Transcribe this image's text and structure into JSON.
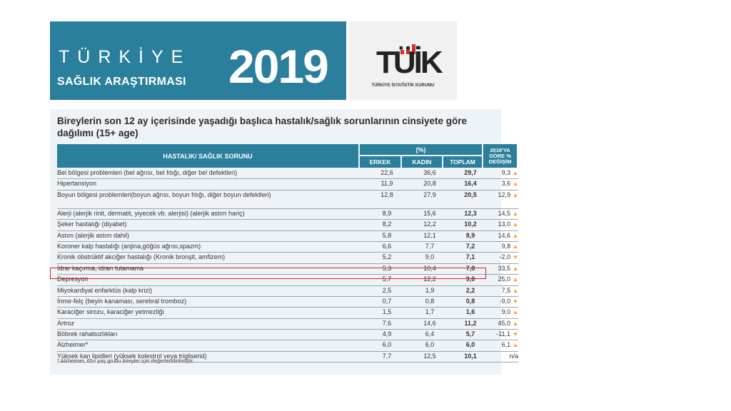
{
  "banner": {
    "word": "TÜRKİYE",
    "subtitle": "SAĞLIK ARAŞTIRMASI",
    "year": "2019",
    "bg_color": "#2a7f9c"
  },
  "logo": {
    "text": "TÜİK",
    "caption": "TÜRKİYE İSTATİSTİK KURUMU",
    "bar_color": "#d32e2e"
  },
  "table": {
    "title": "Bireylerin son 12 ay içerisinde yaşadığı başlıca hastalık/sağlık sorunlarının cinsiyete göre dağılımı (15+ age)",
    "col_disease": "HASTALIK/ SAĞLIK SORUNU",
    "col_pct": "(%)",
    "col_male": "ERKEK",
    "col_female": "KADIN",
    "col_total": "TOPLAM",
    "col_change": "2016'YA GÖRE % DEĞİŞİM",
    "up_color": "#f39a1d",
    "highlight_color": "#d71f27",
    "rows": [
      {
        "name": "Bel bölgesi problemleri (bel ağrısı, bel fıtığı, diğer bel defektleri)",
        "male": "22,6",
        "female": "36,6",
        "total": "29,7",
        "change": "9,3",
        "dir": "up"
      },
      {
        "name": "Hipertansiyon",
        "male": "11,9",
        "female": "20,8",
        "total": "16,4",
        "change": "3,6",
        "dir": "up"
      },
      {
        "name": "Boyun bölgesi problemleri(boyun ağrısı, boyun fıtığı, diğer boyun defektleri)",
        "male": "12,8",
        "female": "27,9",
        "total": "20,5",
        "change": "12,9",
        "dir": "up",
        "tall": true
      },
      {
        "name": "Alerji (alerjik rinit, dermatit, yiyecek vb. alerjisi) (alerjik astım hariç)",
        "male": "8,9",
        "female": "15,6",
        "total": "12,3",
        "change": "14,5",
        "dir": "up"
      },
      {
        "name": "Şeker hastalığı (diyabet)",
        "male": "8,2",
        "female": "12,2",
        "total": "10,2",
        "change": "13,0",
        "dir": "up"
      },
      {
        "name": "Astım (alerjik astım dahil)",
        "male": "5,8",
        "female": "12,1",
        "total": "8,9",
        "change": "14,6",
        "dir": "up"
      },
      {
        "name": "Koroner kalp hastalığı (anjina,göğüs ağrısı,spazm)",
        "male": "6,6",
        "female": "7,7",
        "total": "7,2",
        "change": "9,8",
        "dir": "up"
      },
      {
        "name": "Kronik obstrüktif akciğer hastalığı (Kronik bronşit, amfizem)",
        "male": "5,2",
        "female": "9,0",
        "total": "7,1",
        "change": "-2,0",
        "dir": "down"
      },
      {
        "name": "İdrar kaçırma, idrarı tutamama",
        "male": "5,3",
        "female": "10,4",
        "total": "7,8",
        "change": "33,5",
        "dir": "up"
      },
      {
        "name": "Depresyon",
        "male": "5,7",
        "female": "12,2",
        "total": "9,0",
        "change": "25,0",
        "dir": "up"
      },
      {
        "name": "Miyokardiyal enfarktüs (kalp krizi)",
        "male": "2,5",
        "female": "1,9",
        "total": "2,2",
        "change": "7,5",
        "dir": "up"
      },
      {
        "name": "İnme-felç (beyin kanaması, serebral tromboz)",
        "male": "0,7",
        "female": "0,8",
        "total": "0,8",
        "change": "-9,0",
        "dir": "down"
      },
      {
        "name": "Karaciğer sirozu, karaciğer yetmezliği",
        "male": "1,5",
        "female": "1,7",
        "total": "1,6",
        "change": "9,0",
        "dir": "up"
      },
      {
        "name": "Artroz",
        "male": "7,6",
        "female": "14,6",
        "total": "11,2",
        "change": "45,0",
        "dir": "up"
      },
      {
        "name": "Böbrek rahatsızlıkları",
        "male": "4,9",
        "female": "6,4",
        "total": "5,7",
        "change": "-11,1",
        "dir": "down"
      },
      {
        "name": "Alzheimer*",
        "male": "6,0",
        "female": "6,0",
        "total": "6,0",
        "change": "6,1",
        "dir": "up"
      },
      {
        "name": "Yüksek kan lipidleri (yüksek kolestrol veya trigliserid)",
        "male": "7,7",
        "female": "12,5",
        "total": "10,1",
        "change": "n/a",
        "dir": "none"
      }
    ],
    "footnote": "* Alzheimer, 65+ yaş grubu bireyler için değerlendirilmiştir."
  }
}
